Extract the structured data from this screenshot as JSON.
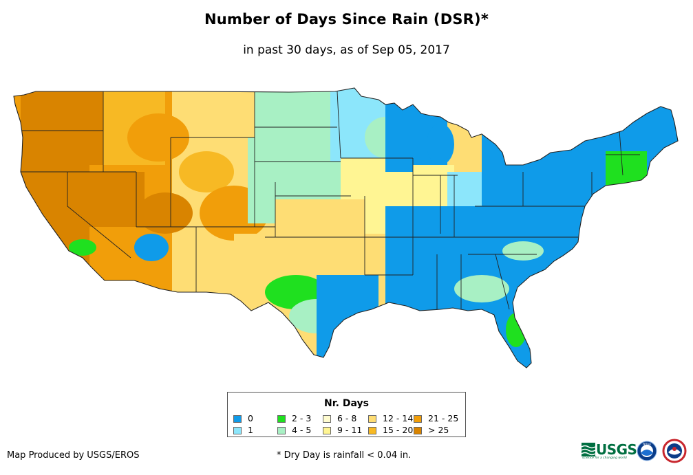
{
  "title": "Number of Days Since Rain (DSR)*",
  "subtitle": "in past 30 days, as of Sep 05, 2017",
  "legend": {
    "title": "Nr. Days",
    "items": [
      {
        "label": "0",
        "color": "#0f9be9"
      },
      {
        "label": "1",
        "color": "#8ce6fb"
      },
      {
        "label": "2 - 3",
        "color": "#1fe01f"
      },
      {
        "label": "4 - 5",
        "color": "#a8f0c4"
      },
      {
        "label": "6 - 8",
        "color": "#fffcd0"
      },
      {
        "label": "9 - 11",
        "color": "#fff593"
      },
      {
        "label": "12 - 14",
        "color": "#fedd74"
      },
      {
        "label": "15 - 20",
        "color": "#f7b924"
      },
      {
        "label": "21 - 25",
        "color": "#f19e0a"
      },
      {
        "label": "> 25",
        "color": "#d98400"
      }
    ]
  },
  "footer": {
    "credit": "Map Produced by USGS/EROS",
    "note": "* Dry Day is rainfall < 0.04 in."
  },
  "logos": {
    "usgs_text": "USGS",
    "usgs_tagline": "science for a changing world",
    "noaa_text": "NOAA"
  }
}
